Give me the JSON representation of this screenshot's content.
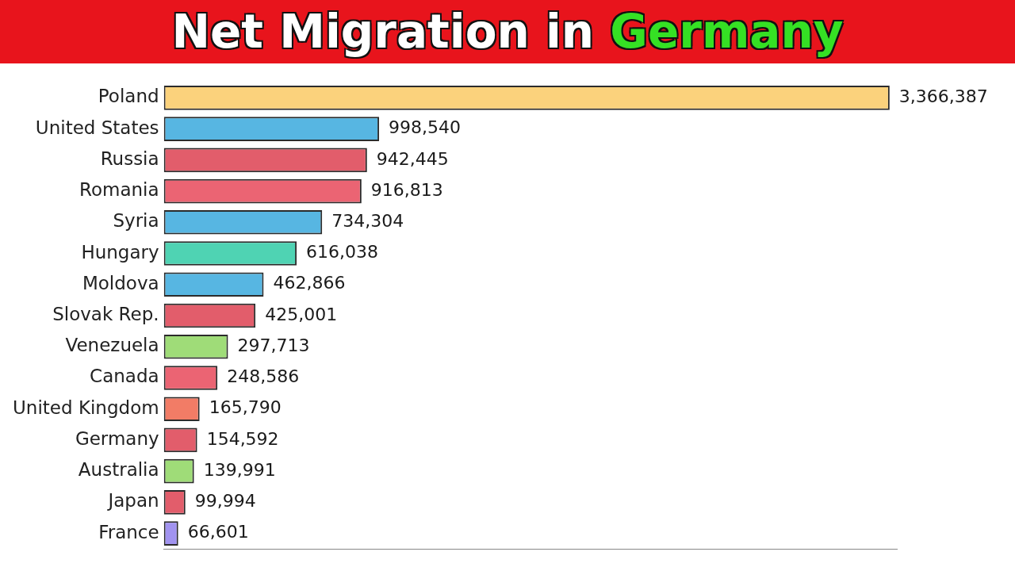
{
  "chart_data": {
    "type": "bar",
    "title": "Net Migration in Germany",
    "orientation": "horizontal",
    "categories": [
      "Poland",
      "United States",
      "Russia",
      "Romania",
      "Syria",
      "Hungary",
      "Moldova",
      "Slovak Rep.",
      "Venezuela",
      "Canada",
      "United Kingdom",
      "Germany",
      "Australia",
      "Japan",
      "France"
    ],
    "values": [
      3366387,
      998540,
      942445,
      916813,
      734304,
      616038,
      462866,
      425001,
      297713,
      248586,
      165790,
      154592,
      139991,
      99994,
      66601
    ],
    "value_labels": [
      "3,366,387",
      "998,540",
      "942,445",
      "916,813",
      "734,304",
      "616,038",
      "462,866",
      "425,001",
      "297,713",
      "248,586",
      "165,790",
      "154,592",
      "139,991",
      "99,994",
      "66,601"
    ],
    "colors": [
      "#fbd27c",
      "#57b6e2",
      "#e25d6b",
      "#eb6473",
      "#57b6e2",
      "#4fd3b3",
      "#57b6e2",
      "#e25d6b",
      "#9fdc78",
      "#eb6473",
      "#f27c66",
      "#e25d6b",
      "#9fdc78",
      "#e25d6b",
      "#a193f0"
    ],
    "xlim": [
      0,
      3400000
    ],
    "grid": false,
    "data_labels": true,
    "tick_labels": "y"
  }
}
